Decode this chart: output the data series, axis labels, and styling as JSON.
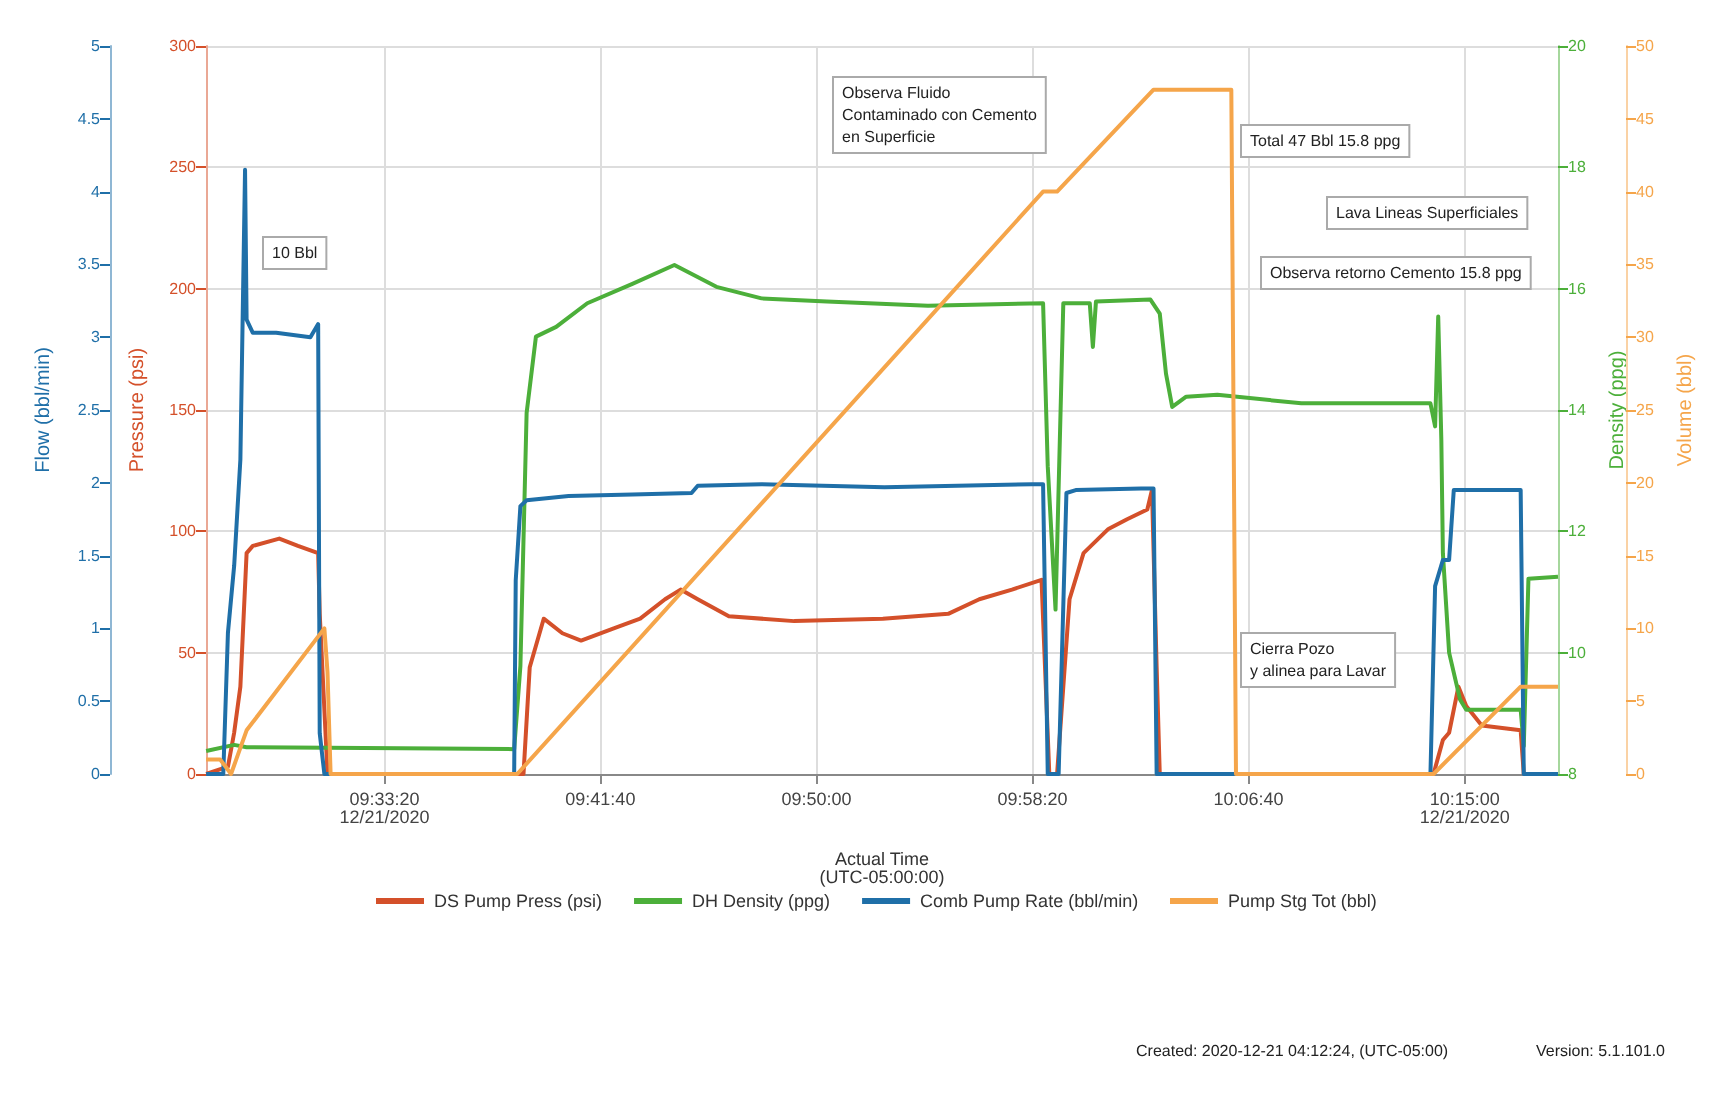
{
  "chart_data": [
    {
      "type": "line",
      "xlabel": "Actual Time\n(UTC-05:00:00)",
      "ylabel": "Pressure (psi)",
      "y2label": "Flow (bbl/min)",
      "y3label": "Density (ppg)",
      "xlim": [
        9.4409,
        10.31
      ],
      "xticks": [
        {
          "value": 9.5556,
          "label": "09:33:20\n12/21/2020"
        },
        {
          "value": 9.6944,
          "label": "09:41:40"
        },
        {
          "value": 9.8333,
          "label": "09:50:00"
        },
        {
          "value": 9.9722,
          "label": "09:58:20"
        },
        {
          "value": 10.1111,
          "label": "10:06:40"
        },
        {
          "value": 10.25,
          "label": "10:15:00\n12/21/2020"
        }
      ],
      "ylim": [
        0,
        300
      ],
      "yticks": [
        0,
        50,
        100,
        150,
        200,
        250,
        300
      ],
      "y2lim": [
        0,
        5
      ],
      "y2ticks": [
        0,
        0.5,
        1,
        1.5,
        2,
        2.5,
        3,
        3.5,
        4,
        4.5,
        5
      ],
      "y3lim": [
        8,
        20
      ],
      "y3ticks": [
        8,
        10,
        12,
        14,
        16,
        18,
        20
      ],
      "grid": true,
      "legend": "bottom",
      "marker": "none",
      "line_style": "solid",
      "series": [
        {
          "name": "DS Pump Press (psi)",
          "color": "#d4502a",
          "axis": "y",
          "x": [
            9.441,
            9.455,
            9.459,
            9.463,
            9.467,
            9.471,
            9.488,
            9.5,
            9.513,
            9.514,
            9.519,
            9.645,
            9.649,
            9.658,
            9.67,
            9.682,
            9.703,
            9.72,
            9.736,
            9.746,
            9.757,
            9.777,
            9.819,
            9.876,
            9.897,
            9.918,
            9.938,
            9.959,
            9.978,
            9.983,
            9.988,
            9.996,
            10.005,
            10.021,
            10.033,
            10.046,
            10.049,
            10.052,
            10.054,
            10.23,
            10.236,
            10.24,
            10.246,
            10.251,
            10.261,
            10.286,
            10.288
          ],
          "values": [
            0,
            3,
            17,
            36,
            91,
            94,
            97,
            94,
            91,
            66,
            0,
            0,
            44,
            64,
            58,
            55,
            60,
            64,
            72,
            76,
            72,
            65,
            63,
            64,
            65,
            66,
            72,
            76,
            80,
            0,
            0,
            72,
            91,
            101,
            105,
            109,
            117,
            44,
            0,
            0,
            14,
            17,
            36,
            28,
            20,
            18,
            0
          ]
        },
        {
          "name": "DH Density (ppg)",
          "color": "#4caf3a",
          "axis": "y3",
          "x": [
            9.441,
            9.459,
            9.467,
            9.639,
            9.643,
            9.647,
            9.653,
            9.666,
            9.686,
            9.715,
            9.742,
            9.769,
            9.798,
            9.84,
            9.905,
            9.979,
            9.982,
            9.987,
            9.992,
            10.009,
            10.011,
            10.013,
            10.048,
            10.054,
            10.058,
            10.062,
            10.071,
            10.091,
            10.145,
            10.228,
            10.231,
            10.233,
            10.235,
            10.236,
            10.24,
            10.247,
            10.251,
            10.286,
            10.288,
            10.291,
            10.31
          ],
          "values": [
            8.38,
            8.48,
            8.44,
            8.41,
            9.78,
            13.95,
            15.21,
            15.37,
            15.76,
            16.08,
            16.39,
            16.03,
            15.84,
            15.79,
            15.72,
            15.76,
            13.07,
            10.71,
            15.76,
            15.76,
            15.04,
            15.79,
            15.82,
            15.59,
            14.6,
            14.05,
            14.22,
            14.25,
            14.11,
            14.11,
            13.73,
            15.54,
            13.51,
            11.64,
            10.0,
            9.23,
            9.06,
            9.06,
            8.46,
            11.22,
            11.25
          ]
        },
        {
          "name": "Comb Pump Rate (bbl/min)",
          "color": "#1f6fa8",
          "axis": "y2",
          "x": [
            9.441,
            9.452,
            9.455,
            9.459,
            9.463,
            9.466,
            9.467,
            9.471,
            9.486,
            9.508,
            9.513,
            9.514,
            9.517,
            9.639,
            9.64,
            9.643,
            9.647,
            9.674,
            9.715,
            9.753,
            9.757,
            9.798,
            9.877,
            9.972,
            9.979,
            9.982,
            9.989,
            9.994,
            10.0,
            10.042,
            10.05,
            10.052,
            10.228,
            10.231,
            10.236,
            10.24,
            10.243,
            10.286,
            10.288,
            10.31
          ],
          "values": [
            0,
            0,
            0.97,
            1.43,
            2.16,
            4.15,
            3.12,
            3.03,
            3.03,
            3.0,
            3.09,
            0.28,
            0,
            0,
            1.33,
            1.84,
            1.88,
            1.91,
            1.92,
            1.93,
            1.98,
            1.99,
            1.97,
            1.99,
            1.99,
            0,
            0,
            1.93,
            1.95,
            1.96,
            1.96,
            0,
            0,
            1.29,
            1.47,
            1.47,
            1.95,
            1.95,
            0,
            0
          ]
        }
      ],
      "annotations": [
        "10 Bbl",
        "Observa Fluido\nContaminado con Cemento\nen Superficie",
        "Total 47 Bbl 15.8 ppg",
        "Observa retorno Cemento 15.8 ppg",
        "Lava Lineas Superficiales",
        "Cierra Pozo\ny alinea para Lavar",
        "Created: 2020-12-21 04:12:24, (UTC-05:00)",
        "Version: 5.1.101.0"
      ]
    },
    {
      "type": "line",
      "ylabel": "Volume (bbl)",
      "xlim": [
        9.4409,
        10.31
      ],
      "ylim": [
        0,
        50
      ],
      "yticks": [
        0,
        5,
        10,
        15,
        20,
        25,
        30,
        35,
        40,
        45,
        50
      ],
      "tick_labels": "y",
      "legend": "bottom",
      "marker": "none",
      "line_style": "solid",
      "series": [
        {
          "name": "Pump Stg Tot (bbl)",
          "color": "#f5a54a",
          "x": [
            9.441,
            9.45,
            9.457,
            9.467,
            9.517,
            9.519,
            9.521,
            9.641,
            9.979,
            9.988,
            10.05,
            10.1,
            10.103,
            10.23,
            10.286,
            10.31
          ],
          "values": [
            1,
            1,
            0,
            3,
            10,
            7,
            0,
            0,
            40,
            40,
            47,
            47,
            0,
            0,
            6,
            6
          ]
        }
      ]
    }
  ]
}
